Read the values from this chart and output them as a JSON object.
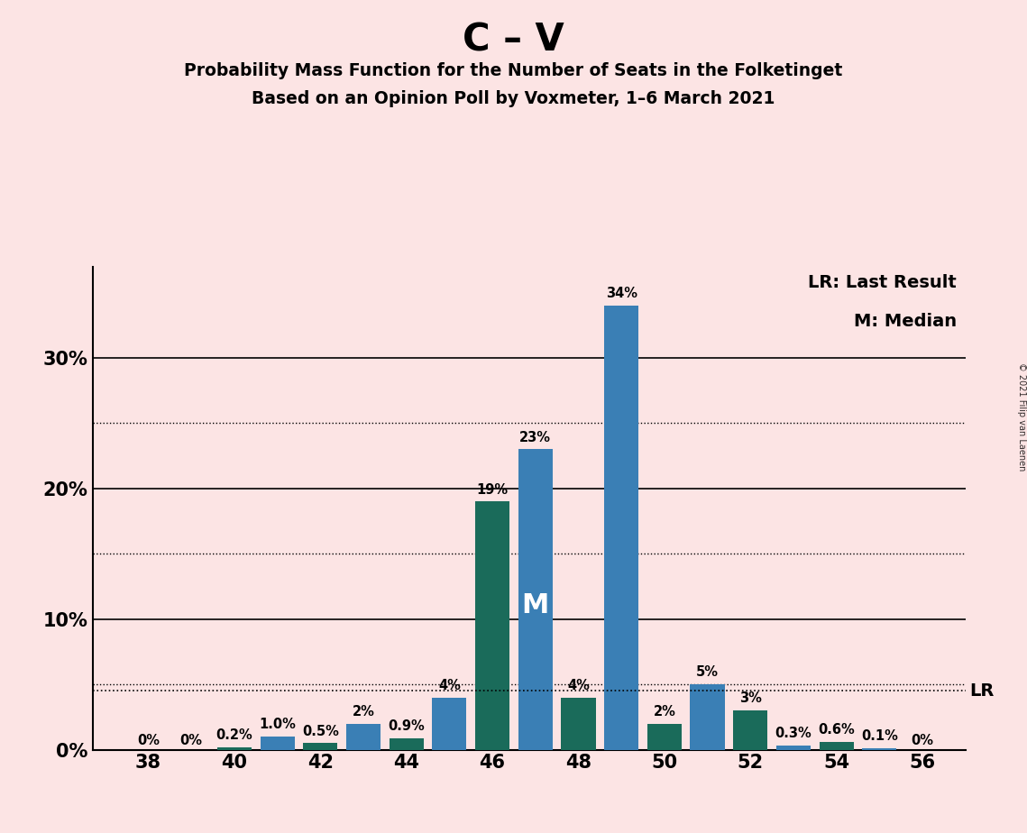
{
  "title_main": "C – V",
  "title_sub1": "Probability Mass Function for the Number of Seats in the Folketinget",
  "title_sub2": "Based on an Opinion Poll by Voxmeter, 1–6 March 2021",
  "copyright": "© 2021 Filip van Laenen",
  "seats": [
    38,
    39,
    40,
    41,
    42,
    43,
    44,
    45,
    46,
    47,
    48,
    49,
    50,
    51,
    52,
    53,
    54,
    55,
    56
  ],
  "values": [
    0.0,
    0.0,
    0.2,
    1.0,
    0.5,
    2.0,
    0.9,
    4.0,
    19.0,
    23.0,
    4.0,
    34.0,
    2.0,
    5.0,
    3.0,
    0.3,
    0.6,
    0.1,
    0.0
  ],
  "colors": [
    "#1a6b5a",
    "#3a7fb5",
    "#1a6b5a",
    "#3a7fb5",
    "#1a6b5a",
    "#3a7fb5",
    "#1a6b5a",
    "#3a7fb5",
    "#1a6b5a",
    "#3a7fb5",
    "#1a6b5a",
    "#3a7fb5",
    "#1a6b5a",
    "#3a7fb5",
    "#1a6b5a",
    "#3a7fb5",
    "#1a6b5a",
    "#3a7fb5",
    "#1a6b5a"
  ],
  "labels": [
    "0%",
    "0%",
    "0.2%",
    "1.0%",
    "0.5%",
    "2%",
    "0.9%",
    "4%",
    "19%",
    "23%",
    "4%",
    "34%",
    "2%",
    "5%",
    "3%",
    "0.3%",
    "0.6%",
    "0.1%",
    "0%"
  ],
  "xticks": [
    38,
    40,
    42,
    44,
    46,
    48,
    50,
    52,
    54,
    56
  ],
  "yticks": [
    0,
    10,
    20,
    30
  ],
  "ylim": [
    0,
    37
  ],
  "lr_value": 4.5,
  "median_seat": 47,
  "background_color": "#fce4e4",
  "legend_lr": "LR: Last Result",
  "legend_m": "M: Median",
  "lr_label": "LR",
  "m_label": "M",
  "bar_width": 0.8,
  "solid_gridlines_at": [
    10,
    20,
    30
  ],
  "dotted_gridlines_at": [
    5,
    15,
    25
  ]
}
